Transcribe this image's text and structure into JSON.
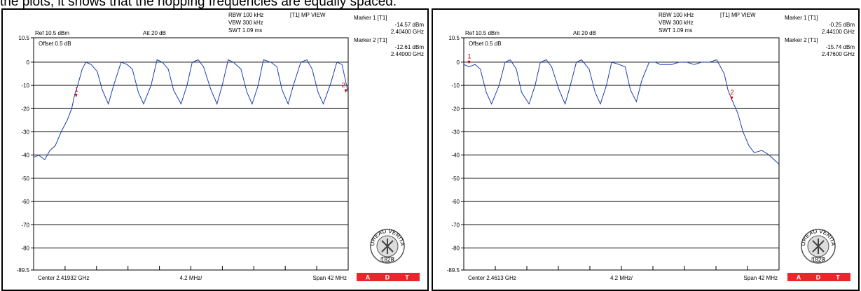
{
  "caption": "the plots, it shows that the hopping frequencies are equally spaced.",
  "chart_data": [
    {
      "type": "line",
      "header": {
        "rbw": "RBW 100 kHz",
        "vbw": "VBW 300 kHz",
        "swt": "SWT 1.09 ms",
        "view": "[T1] MP VIEW",
        "ref": "Ref 10.5 dBm",
        "att": "Att  20 dB",
        "offset": "Offset 0.5 dB"
      },
      "markers": [
        {
          "title": "Marker 1 [T1]",
          "level": "-14.57 dBm",
          "freq": "2.40400 GHz",
          "label": "1",
          "x_mhz": 2404.0,
          "y": -14.57
        },
        {
          "title": "Marker 2 [T1]",
          "level": "-12.61 dBm",
          "freq": "2.44000 GHz",
          "label": "2",
          "x_mhz": 2440.0,
          "y": -12.61
        }
      ],
      "ytick_labels": [
        "10.5",
        "0",
        "-10",
        "-20",
        "-30",
        "-40",
        "-50",
        "-60",
        "-70",
        "-80",
        "-89.5"
      ],
      "ylim": [
        -89.5,
        10.5
      ],
      "xlim_mhz": [
        2398.32,
        2440.32
      ],
      "center": "Center 2.41932 GHz",
      "div": "4.2 MHz/",
      "span": "Span 42 MHz",
      "series": [
        {
          "x_mhz": [
            2398.3,
            2399.0,
            2399.8,
            2400.5,
            2401.2,
            2402.0,
            2402.8,
            2403.4,
            2403.8,
            2404.2,
            2404.8,
            2405.3,
            2406.0,
            2406.8,
            2407.5,
            2408.3,
            2409.0,
            2410.0,
            2410.8,
            2411.5,
            2412.3,
            2413.0,
            2414.0,
            2414.8,
            2415.5,
            2416.3,
            2417.0,
            2418.0,
            2418.8,
            2419.5,
            2420.3,
            2421.0,
            2422.0,
            2422.8,
            2423.5,
            2424.3,
            2425.0,
            2426.0,
            2426.8,
            2427.5,
            2428.3,
            2429.0,
            2430.0,
            2430.8,
            2431.5,
            2432.3,
            2433.0,
            2434.0,
            2434.8,
            2435.5,
            2436.3,
            2437.0,
            2438.0,
            2438.8,
            2439.5,
            2440.3
          ],
          "values": [
            -41,
            -40,
            -42,
            -38,
            -36,
            -30,
            -25,
            -20,
            -14,
            -10,
            -3,
            0,
            -1,
            -4,
            -12,
            -18,
            -10,
            0,
            -1,
            -3,
            -13,
            -18,
            -10,
            1,
            0,
            -3,
            -12,
            -18,
            -10,
            0,
            1,
            -2,
            -12,
            -18,
            -10,
            1,
            0,
            -3,
            -13,
            -18,
            -10,
            1,
            0,
            -2,
            -12,
            -18,
            -10,
            0,
            1,
            -3,
            -13,
            -18,
            -9,
            0,
            -1,
            -13
          ]
        }
      ]
    },
    {
      "type": "line",
      "header": {
        "rbw": "RBW 100 kHz",
        "vbw": "VBW 300 kHz",
        "swt": "SWT 1.09 ms",
        "view": "[T1] MP VIEW",
        "ref": "Ref 10.5 dBm",
        "att": "Att  20 dB",
        "offset": "Offset 0.5 dB"
      },
      "markers": [
        {
          "title": "Marker 1 [T1]",
          "level": "-0.25 dBm",
          "freq": "2.44100 GHz",
          "label": "1",
          "x_mhz": 2441.0,
          "y": -0.25
        },
        {
          "title": "Marker 2 [T1]",
          "level": "-15.74 dBm",
          "freq": "2.47600 GHz",
          "label": "2",
          "x_mhz": 2476.0,
          "y": -15.74
        }
      ],
      "ytick_labels": [
        "10.5",
        "0",
        "-10",
        "-20",
        "-30",
        "-40",
        "-50",
        "-60",
        "-70",
        "-80",
        "-89.5"
      ],
      "ylim": [
        -89.5,
        10.5
      ],
      "xlim_mhz": [
        2440.3,
        2482.3
      ],
      "center": "Center 2.4613 GHz",
      "div": "4.2 MHz/",
      "span": "Span 42 MHz",
      "series": [
        {
          "x_mhz": [
            2440.3,
            2441.0,
            2441.8,
            2442.5,
            2443.3,
            2444.0,
            2445.0,
            2445.8,
            2446.5,
            2447.3,
            2448.0,
            2449.0,
            2449.8,
            2450.5,
            2451.3,
            2452.0,
            2453.0,
            2453.8,
            2454.5,
            2455.3,
            2456.0,
            2457.0,
            2457.8,
            2458.5,
            2459.3,
            2460.0,
            2461.0,
            2461.8,
            2462.5,
            2463.3,
            2464.0,
            2465.0,
            2465.8,
            2466.5,
            2467.3,
            2468.0,
            2469.0,
            2470.0,
            2471.0,
            2472.0,
            2473.0,
            2474.0,
            2475.0,
            2475.5,
            2476.0,
            2476.8,
            2477.5,
            2478.3,
            2479.0,
            2480.0,
            2481.0,
            2482.3
          ],
          "values": [
            -1,
            -2,
            -1,
            -3,
            -13,
            -18,
            -10,
            0,
            1,
            -3,
            -13,
            -18,
            -10,
            0,
            1,
            -2,
            -12,
            -18,
            -10,
            0,
            1,
            -3,
            -13,
            -18,
            -10,
            0,
            -1,
            -2,
            -12,
            -17,
            -8,
            0,
            0,
            -1,
            -1,
            -1,
            0,
            0,
            -1,
            0,
            0,
            1,
            -5,
            -12,
            -16,
            -22,
            -30,
            -36,
            -39,
            -38,
            -40,
            -44
          ]
        }
      ]
    }
  ],
  "logo": {
    "ring_text": "BUREAU VERITAS",
    "year": "1828",
    "adt": [
      "A",
      "D",
      "T"
    ]
  }
}
